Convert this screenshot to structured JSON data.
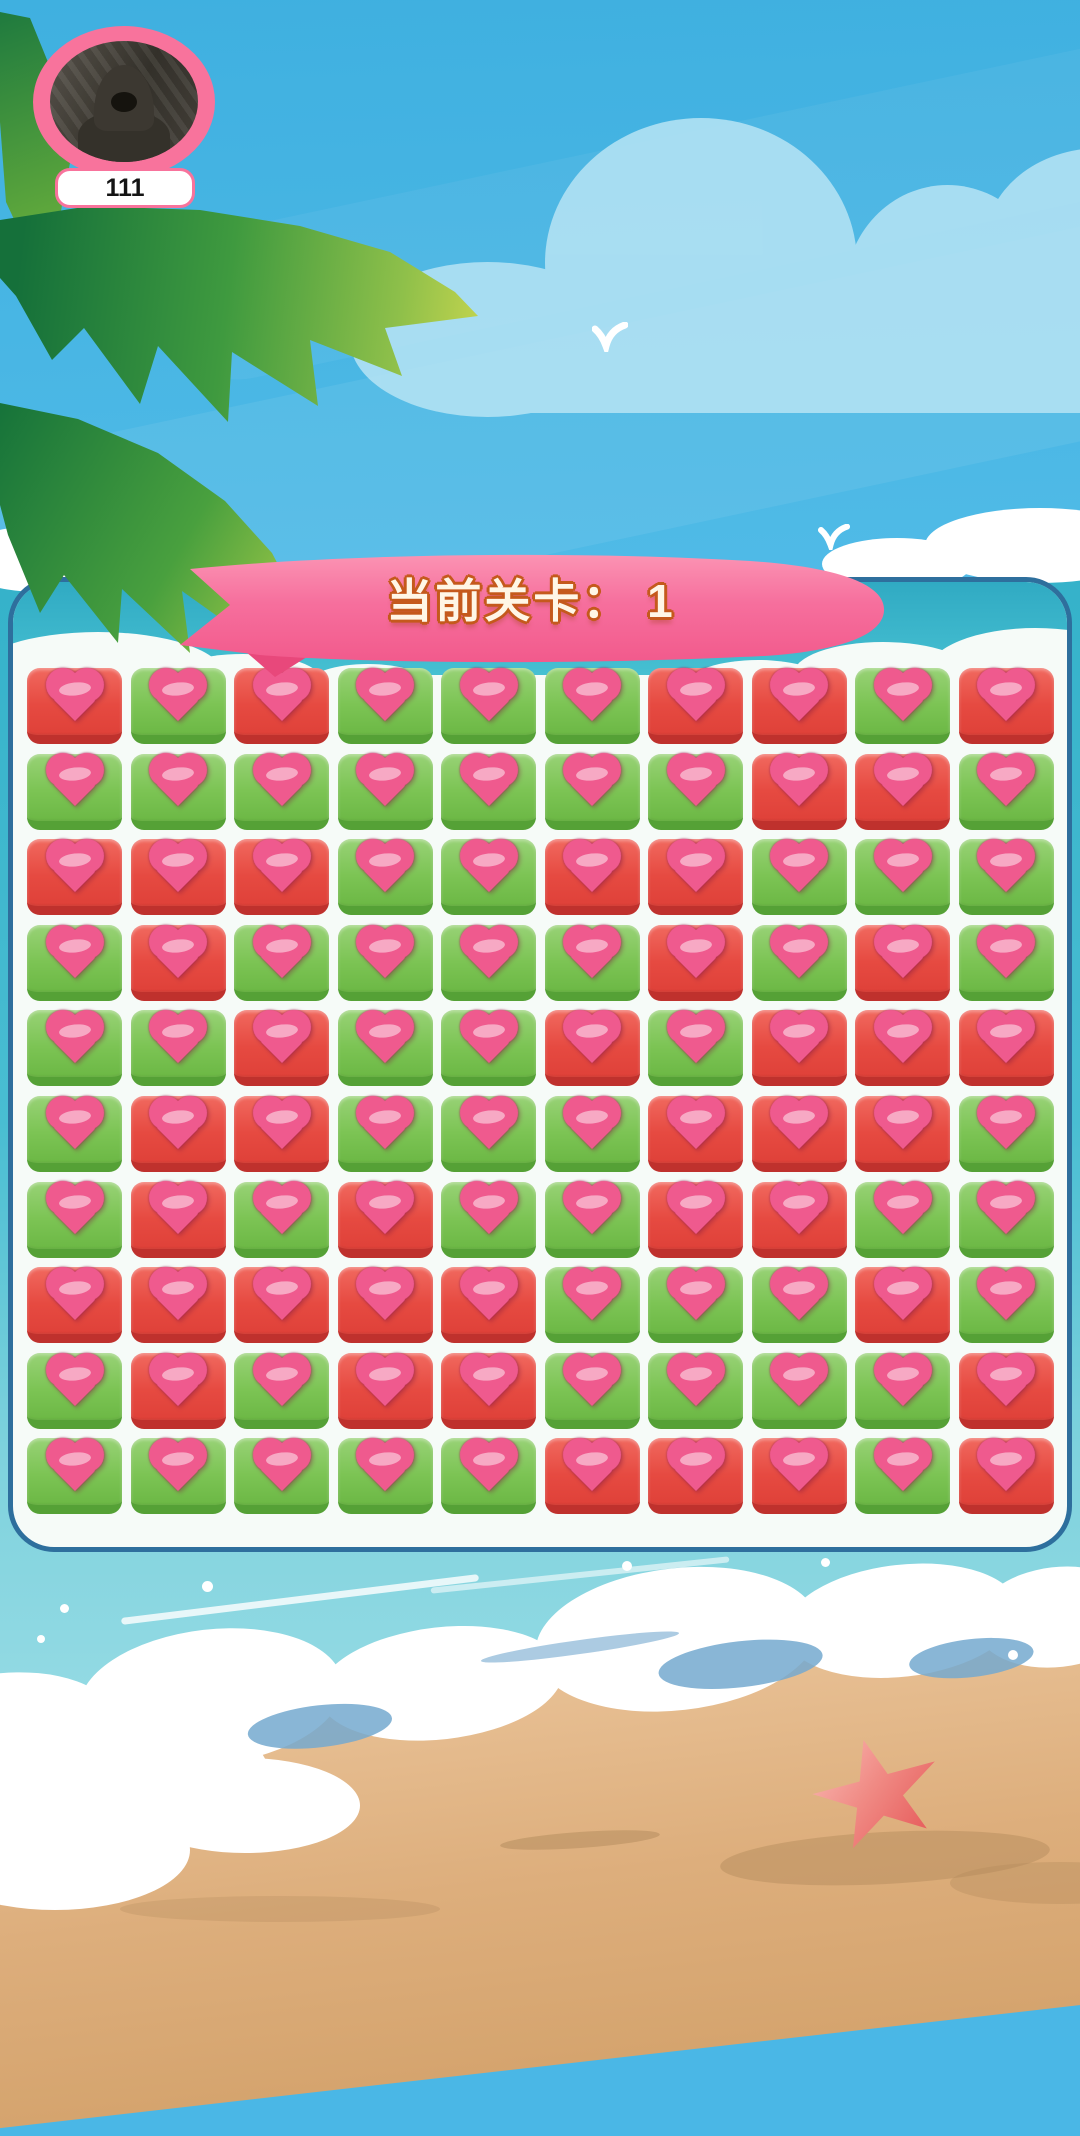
{
  "screen": {
    "type": "match-2-block-puzzle",
    "scene": "beach"
  },
  "player": {
    "name": "111"
  },
  "level_banner": {
    "text": "当前关卡： 1"
  },
  "board": {
    "rows": 10,
    "cols": 10,
    "cell_codes": [
      "RGRGGGRRGR",
      "GGGGGGGRRG",
      "RRRGGRRGGG",
      "GRGGGGRGRG",
      "GGRGGRGRRR",
      "GRRGGGRRRG",
      "GRGRGGRRGG",
      "RRRRRGGGRG",
      "GRGRRGGGGR",
      "GGGGGRRRGR"
    ],
    "legend": {
      "R": "red-heart-tile",
      "G": "green-heart-tile"
    }
  },
  "icons": {
    "tile_glyph": "heart-icon",
    "beach_decor": "starfish-icon",
    "sky_decor": "bird-icon"
  },
  "colors": {
    "sky_blue": "#4ab7e6",
    "sea_teal": "#3db8ce",
    "sand": "#dfb285",
    "panel_outline": "#2e6f9d",
    "panel_fill": "#f6fbf8",
    "tile_red": "#e2423c",
    "tile_green": "#79c350",
    "heart_pink": "#ef5a8e",
    "banner_pink": "#f46292",
    "banner_text_fill": "#fff6e6",
    "banner_text_outline": "#c5591c",
    "avatar_ring_pink": "#f8739c"
  }
}
